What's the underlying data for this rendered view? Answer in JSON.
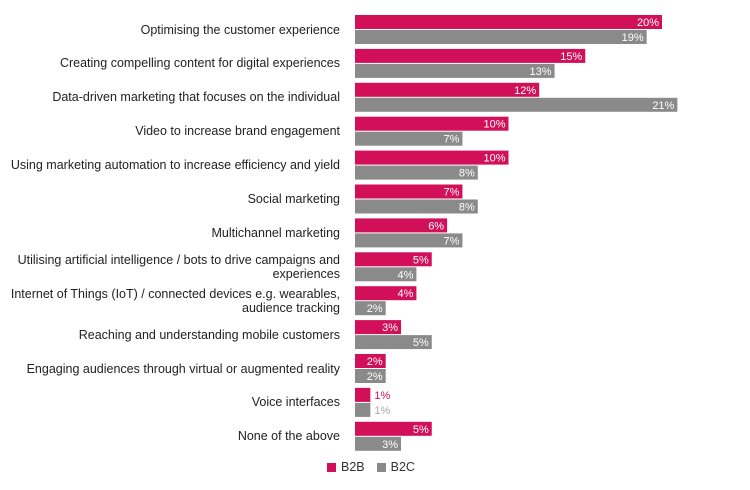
{
  "chart_data": {
    "type": "bar",
    "orientation": "horizontal",
    "categories": [
      "Optimising the customer experience",
      "Creating compelling content for digital experiences",
      "Data-driven marketing that focuses on the individual",
      "Video to increase brand engagement",
      "Using marketing automation to increase efficiency and yield",
      "Social marketing",
      "Multichannel marketing",
      "Utilising artificial intelligence / bots to drive campaigns and experiences",
      "Internet of Things (IoT) / connected devices e.g. wearables, audience tracking",
      "Reaching and understanding mobile customers",
      "Engaging audiences through virtual or augmented reality",
      "Voice interfaces",
      "None of the above"
    ],
    "series": [
      {
        "name": "B2B",
        "color": "#d2105a",
        "values": [
          20,
          15,
          12,
          10,
          10,
          7,
          6,
          5,
          4,
          3,
          2,
          1,
          5
        ],
        "labels": [
          "20%",
          "15%",
          "12%",
          "10%",
          "10%",
          "7%",
          "6%",
          "5%",
          "4%",
          "3%",
          "2%",
          "1%",
          "5%"
        ]
      },
      {
        "name": "B2C",
        "color": "#8a8a8a",
        "values": [
          19,
          13,
          21,
          7,
          8,
          8,
          7,
          4,
          2,
          5,
          2,
          1,
          3
        ],
        "labels": [
          "19%",
          "13%",
          "21%",
          "7%",
          "8%",
          "8%",
          "7%",
          "4%",
          "2%",
          "5%",
          "2%",
          "1%",
          "3%"
        ]
      }
    ],
    "unit": "%",
    "grid": false,
    "legend_position": "bottom"
  }
}
